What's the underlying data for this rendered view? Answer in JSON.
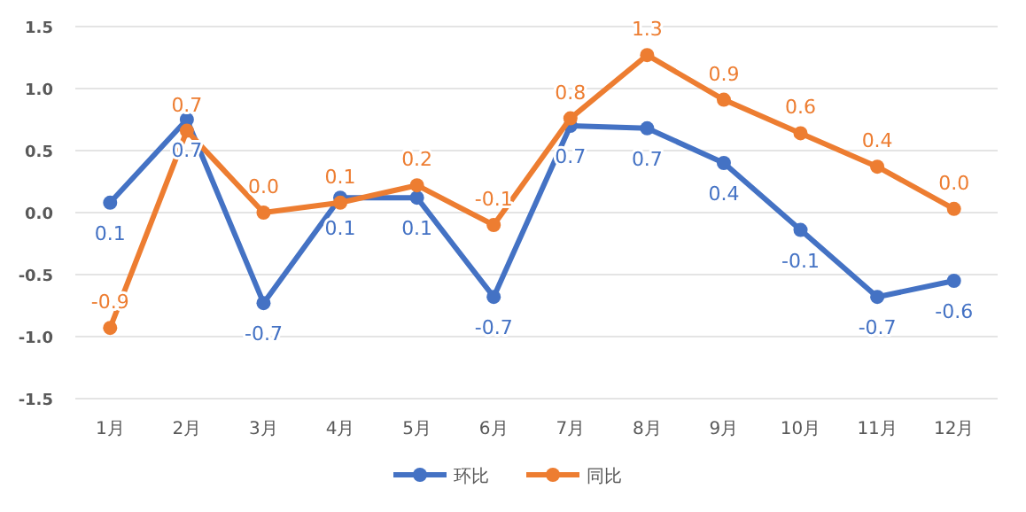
{
  "chart_data": {
    "type": "line",
    "categories": [
      "1月",
      "2月",
      "3月",
      "4月",
      "5月",
      "6月",
      "7月",
      "8月",
      "9月",
      "10月",
      "11月",
      "12月"
    ],
    "series": [
      {
        "name": "环比",
        "color": "#4472c4",
        "values": [
          0.08,
          0.75,
          -0.73,
          0.12,
          0.12,
          -0.68,
          0.7,
          0.68,
          0.4,
          -0.14,
          -0.68,
          -0.55
        ],
        "value_labels": [
          "0.1",
          "0.7",
          "-0.7",
          "0.1",
          "0.1",
          "-0.7",
          "0.7",
          "0.7",
          "0.4",
          "-0.1",
          "-0.7",
          "-0.6"
        ]
      },
      {
        "name": "同比",
        "color": "#ed7d31",
        "values": [
          -0.93,
          0.66,
          0.0,
          0.08,
          0.22,
          -0.1,
          0.76,
          1.27,
          0.91,
          0.64,
          0.37,
          0.03
        ],
        "value_labels": [
          "-0.9",
          "0.7",
          "0.0",
          "0.1",
          "0.2",
          "-0.1",
          "0.8",
          "1.3",
          "0.9",
          "0.6",
          "0.4",
          "0.0"
        ]
      }
    ],
    "ylim": [
      -1.5,
      1.5
    ],
    "yticks": [
      {
        "value": -1.5,
        "label": "-1.5"
      },
      {
        "value": -1,
        "label": "-1.0"
      },
      {
        "value": -0.5,
        "label": "-0.5"
      },
      {
        "value": 0,
        "label": "0.0"
      },
      {
        "value": 0.5,
        "label": "0.5"
      },
      {
        "value": 1,
        "label": "1.0"
      },
      {
        "value": 1.5,
        "label": "1.5"
      }
    ],
    "grid": "y",
    "legend": "bottom",
    "marker": "circle",
    "line_style": "solid"
  }
}
